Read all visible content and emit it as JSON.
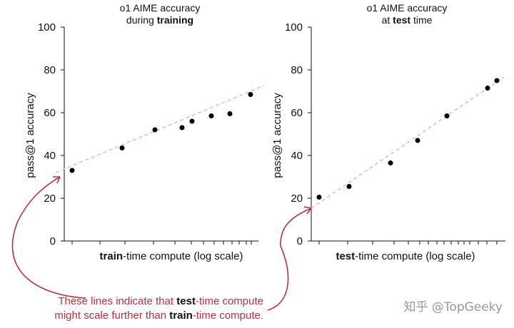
{
  "chart_data": [
    {
      "type": "scatter",
      "title_line1": "o1 AIME accuracy",
      "title_line2_prefix": "during ",
      "title_line2_bold": "training",
      "title_line2_suffix": "",
      "xlabel_bold": "train",
      "xlabel_rest": "-time compute (log scale)",
      "ylabel": "pass@1 accuracy",
      "ylim": [
        0,
        100
      ],
      "yticks": [
        "0",
        "20",
        "40",
        "60",
        "80",
        "100"
      ],
      "x_scale": "log",
      "x_tick_labels": "none",
      "points": [
        {
          "x": 1,
          "y": 33
        },
        {
          "x": 2,
          "y": 43.5
        },
        {
          "x": 3,
          "y": 52
        },
        {
          "x": 4,
          "y": 53
        },
        {
          "x": 5,
          "y": 56
        },
        {
          "x": 6,
          "y": 58.5
        },
        {
          "x": 7,
          "y": 59.5
        },
        {
          "x": 8,
          "y": 68.5
        }
      ],
      "trend": "dashed linear fit"
    },
    {
      "type": "scatter",
      "title_line1": "o1 AIME accuracy",
      "title_line2_prefix": "at ",
      "title_line2_bold": "test",
      "title_line2_suffix": " time",
      "xlabel_bold": "test",
      "xlabel_rest": "-time compute (log scale)",
      "ylabel": "pass@1 accuracy",
      "ylim": [
        0,
        100
      ],
      "yticks": [
        "0",
        "20",
        "40",
        "60",
        "80",
        "100"
      ],
      "x_scale": "log",
      "x_tick_labels": "none",
      "points": [
        {
          "x": 1,
          "y": 20.5
        },
        {
          "x": 2,
          "y": 25.5
        },
        {
          "x": 3,
          "y": 36.5
        },
        {
          "x": 4,
          "y": 47
        },
        {
          "x": 5,
          "y": 58.5
        },
        {
          "x": 6,
          "y": 71.5
        },
        {
          "x": 7,
          "y": 75
        }
      ],
      "trend": "dashed linear fit"
    }
  ],
  "annotation": {
    "line1_prefix": "These lines indicate that ",
    "line1_bold": "test",
    "line1_suffix": "-time compute",
    "line2_prefix": "might scale further than ",
    "line2_bold": "train",
    "line2_suffix": "-time compute."
  },
  "watermark": "知乎 @TopGeeky",
  "colors": {
    "point": "#000000",
    "trend": "#e8b8b8",
    "annotation": "#b3343d"
  }
}
